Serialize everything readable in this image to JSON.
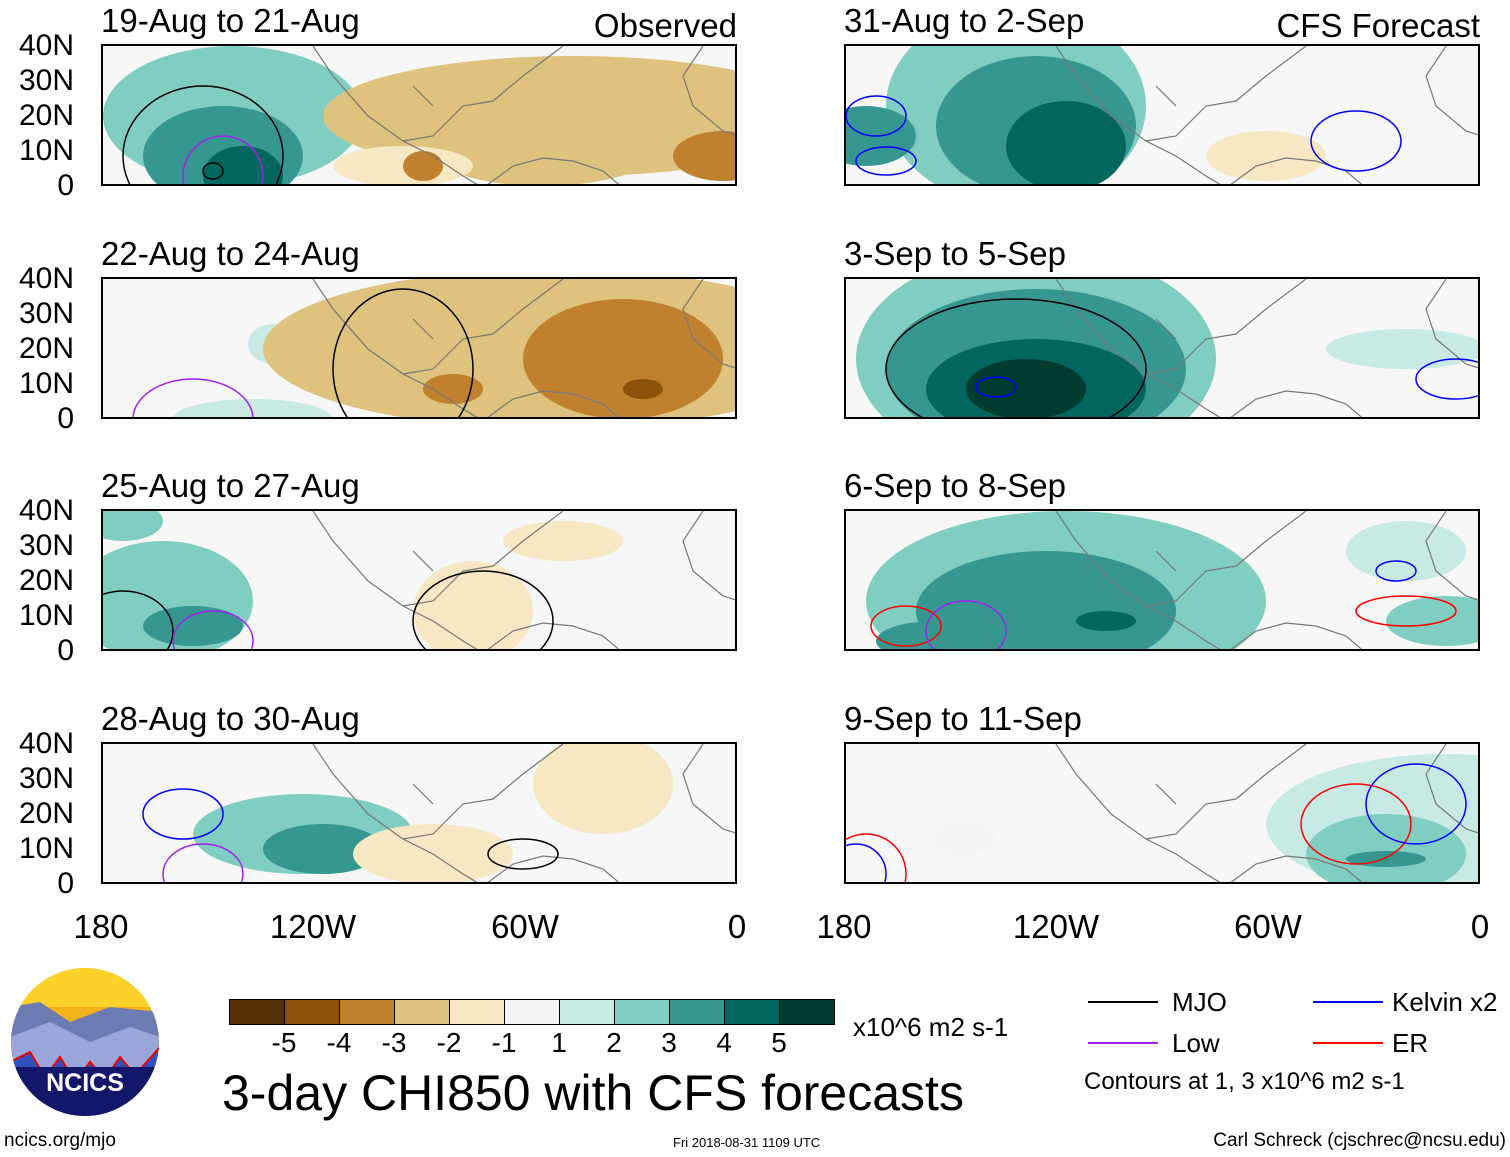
{
  "panels_left": [
    {
      "title": "19-Aug to 21-Aug",
      "tag": "Observed"
    },
    {
      "title": "22-Aug to 24-Aug"
    },
    {
      "title": "25-Aug to 27-Aug"
    },
    {
      "title": "28-Aug to 30-Aug"
    }
  ],
  "panels_right": [
    {
      "title": "31-Aug to 2-Sep",
      "tag": "CFS Forecast"
    },
    {
      "title": "3-Sep to 5-Sep"
    },
    {
      "title": "6-Sep to 8-Sep"
    },
    {
      "title": "9-Sep to 11-Sep"
    }
  ],
  "y_ticks": [
    "40N",
    "30N",
    "20N",
    "10N",
    "0"
  ],
  "x_ticks": [
    "180",
    "120W",
    "60W",
    "0"
  ],
  "colorbar": {
    "colors": [
      "#543005",
      "#8c510a",
      "#bf812d",
      "#dfc27d",
      "#f6e8c3",
      "#f5f5f5",
      "#c7eae5",
      "#80cdc1",
      "#35978f",
      "#01665e",
      "#003c30"
    ],
    "labels": [
      "-5",
      "-4",
      "-3",
      "-2",
      "-1",
      "1",
      "2",
      "3",
      "4",
      "5"
    ],
    "units": "x10^6 m2 s-1"
  },
  "title": "3-day CHI850 with CFS forecasts",
  "legend": {
    "items": [
      {
        "label": "MJO",
        "color": "#000000"
      },
      {
        "label": "Kelvin x2",
        "color": "#0000ff"
      },
      {
        "label": "Low",
        "color": "#a020f0"
      },
      {
        "label": "ER",
        "color": "#ff0000"
      }
    ],
    "note": "Contours at 1, 3 x10^6 m2 s-1"
  },
  "logo_text": "NCICS",
  "footer": {
    "left": "ncics.org/mjo",
    "center": "Fri 2018-08-31 1109 UTC",
    "right": "Carl Schreck (cjschrec@ncsu.edu)"
  }
}
